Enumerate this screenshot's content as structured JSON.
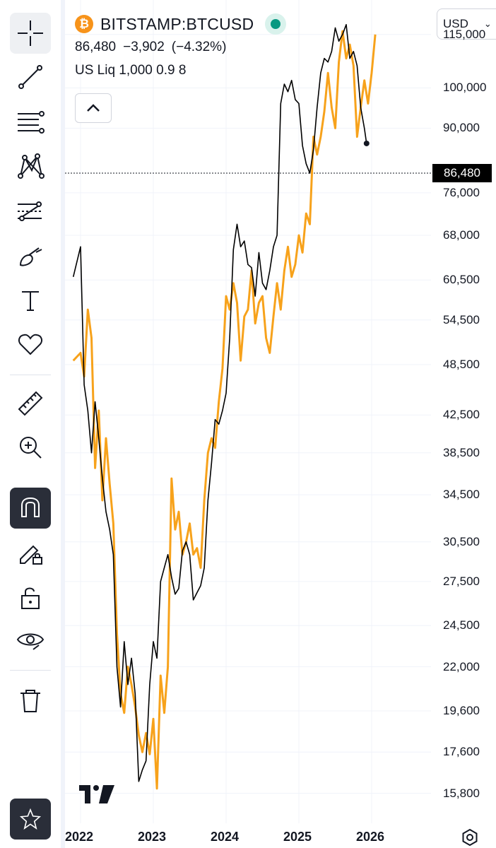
{
  "legend": {
    "symbol": "BITSTAMP:BTCUSD",
    "last_price": "86,480",
    "change": "−3,902",
    "change_pct": "(−4.32%)",
    "indicator": "US Liq 1,000 0.9 8",
    "logo_glyph": "₿"
  },
  "currency": {
    "label": "USD",
    "chevron": "⌄"
  },
  "price_axis": {
    "labels": [
      "115,000",
      "100,000",
      "90,000",
      "76,000",
      "68,000",
      "60,500",
      "54,500",
      "48,500",
      "42,500",
      "38,500",
      "34,500",
      "30,500",
      "27,500",
      "24,500",
      "22,000",
      "19,600",
      "17,600",
      "15,800"
    ],
    "current_label": "86,480"
  },
  "time_axis": {
    "labels": [
      "2022",
      "2023",
      "2024",
      "2025",
      "2026"
    ]
  },
  "colors": {
    "price_line": "#000000",
    "indicator_line": "#f7a21b",
    "grid": "#f0f3fa",
    "btc": "#f7931a",
    "status": "#089981"
  },
  "toolbar": {
    "tools": [
      "crosshair-icon",
      "trend-line-icon",
      "fib-icon",
      "pattern-icon",
      "forecast-icon",
      "brush-icon",
      "text-icon",
      "heart-icon",
      "ruler-icon",
      "zoom-in-icon",
      "magnet-icon",
      "pencil-lock-icon",
      "lock-icon",
      "eye-icon",
      "trash-icon",
      "star-icon"
    ],
    "active_tool": "magnet-icon"
  },
  "chart_data": {
    "type": "line",
    "title": "BITSTAMP:BTCUSD",
    "x_axis_labels": [
      "2022",
      "2023",
      "2024",
      "2025",
      "2026"
    ],
    "y_scale": "log",
    "ylim": [
      14800,
      124000
    ],
    "series": [
      {
        "name": "BITSTAMP:BTCUSD",
        "x": [
          2021.9,
          2022.0,
          2022.05,
          2022.1,
          2022.15,
          2022.2,
          2022.25,
          2022.3,
          2022.35,
          2022.4,
          2022.45,
          2022.5,
          2022.55,
          2022.6,
          2022.65,
          2022.7,
          2022.75,
          2022.8,
          2022.85,
          2022.9,
          2022.95,
          2023.0,
          2023.05,
          2023.1,
          2023.15,
          2023.2,
          2023.25,
          2023.3,
          2023.35,
          2023.4,
          2023.45,
          2023.5,
          2023.55,
          2023.6,
          2023.65,
          2023.7,
          2023.75,
          2023.8,
          2023.85,
          2023.9,
          2023.95,
          2024.0,
          2024.05,
          2024.1,
          2024.15,
          2024.2,
          2024.25,
          2024.3,
          2024.35,
          2024.4,
          2024.45,
          2024.5,
          2024.55,
          2024.6,
          2024.65,
          2024.7,
          2024.75,
          2024.8,
          2024.85,
          2024.9,
          2024.95,
          2025.0,
          2025.05,
          2025.1,
          2025.15,
          2025.2,
          2025.25,
          2025.3,
          2025.35,
          2025.4,
          2025.45,
          2025.5,
          2025.55,
          2025.6,
          2025.65,
          2025.7,
          2025.75,
          2025.8,
          2025.85,
          2025.9,
          2025.93
        ],
        "values": [
          61000,
          66000,
          46000,
          43000,
          38500,
          44000,
          40000,
          36000,
          33000,
          31500,
          29500,
          22000,
          19800,
          23500,
          21000,
          22500,
          20500,
          16300,
          16800,
          17200,
          21000,
          23500,
          22500,
          27500,
          28500,
          29500,
          27800,
          26600,
          27000,
          29800,
          30500,
          29500,
          26200,
          26700,
          27200,
          28500,
          34000,
          37500,
          42000,
          41500,
          43000,
          45000,
          52000,
          65500,
          70000,
          66000,
          67000,
          63000,
          62500,
          58000,
          65000,
          60000,
          59000,
          62000,
          66000,
          68000,
          96000,
          101000,
          99000,
          102000,
          97000,
          96000,
          86000,
          82000,
          80000,
          85000,
          95000,
          104000,
          108000,
          107000,
          110000,
          117000,
          113000,
          115000,
          118000,
          108000,
          110000,
          106000,
          95000,
          90000,
          86480
        ]
      },
      {
        "name": "US Liq",
        "x": [
          2021.9,
          2022.0,
          2022.05,
          2022.1,
          2022.15,
          2022.2,
          2022.25,
          2022.3,
          2022.35,
          2022.4,
          2022.45,
          2022.5,
          2022.55,
          2022.6,
          2022.65,
          2022.7,
          2022.75,
          2022.8,
          2022.85,
          2022.9,
          2022.95,
          2023.0,
          2023.05,
          2023.1,
          2023.15,
          2023.2,
          2023.25,
          2023.3,
          2023.35,
          2023.4,
          2023.45,
          2023.5,
          2023.55,
          2023.6,
          2023.65,
          2023.7,
          2023.75,
          2023.8,
          2023.85,
          2023.9,
          2023.95,
          2024.0,
          2024.05,
          2024.1,
          2024.15,
          2024.2,
          2024.25,
          2024.3,
          2024.35,
          2024.4,
          2024.45,
          2024.5,
          2024.55,
          2024.6,
          2024.65,
          2024.7,
          2024.75,
          2024.8,
          2024.85,
          2024.9,
          2024.95,
          2025.0,
          2025.05,
          2025.1,
          2025.15,
          2025.2,
          2025.25,
          2025.3,
          2025.35,
          2025.4,
          2025.45,
          2025.5,
          2025.55,
          2025.6,
          2025.65,
          2025.7,
          2025.75,
          2025.8,
          2025.85,
          2025.9,
          2025.95,
          2026.0,
          2026.05
        ],
        "values": [
          49000,
          50000,
          47000,
          56000,
          52000,
          37000,
          43000,
          34000,
          40000,
          35500,
          32000,
          24000,
          20500,
          19500,
          22000,
          21000,
          19800,
          18400,
          17600,
          18500,
          17500,
          19200,
          16000,
          21500,
          19500,
          22000,
          36000,
          31500,
          33000,
          29500,
          30500,
          32000,
          29500,
          30000,
          28500,
          34000,
          38500,
          40000,
          39000,
          44000,
          48000,
          58000,
          56000,
          60000,
          57000,
          49000,
          55000,
          56000,
          62000,
          54000,
          57000,
          58000,
          52000,
          50000,
          55000,
          60000,
          56000,
          62000,
          66000,
          61000,
          63000,
          68000,
          65000,
          72000,
          70000,
          88000,
          84000,
          88000,
          94000,
          104000,
          95000,
          90000,
          107000,
          116000,
          108000,
          112000,
          106000,
          88000,
          95000,
          102000,
          96000,
          104000,
          115000
        ]
      }
    ]
  }
}
